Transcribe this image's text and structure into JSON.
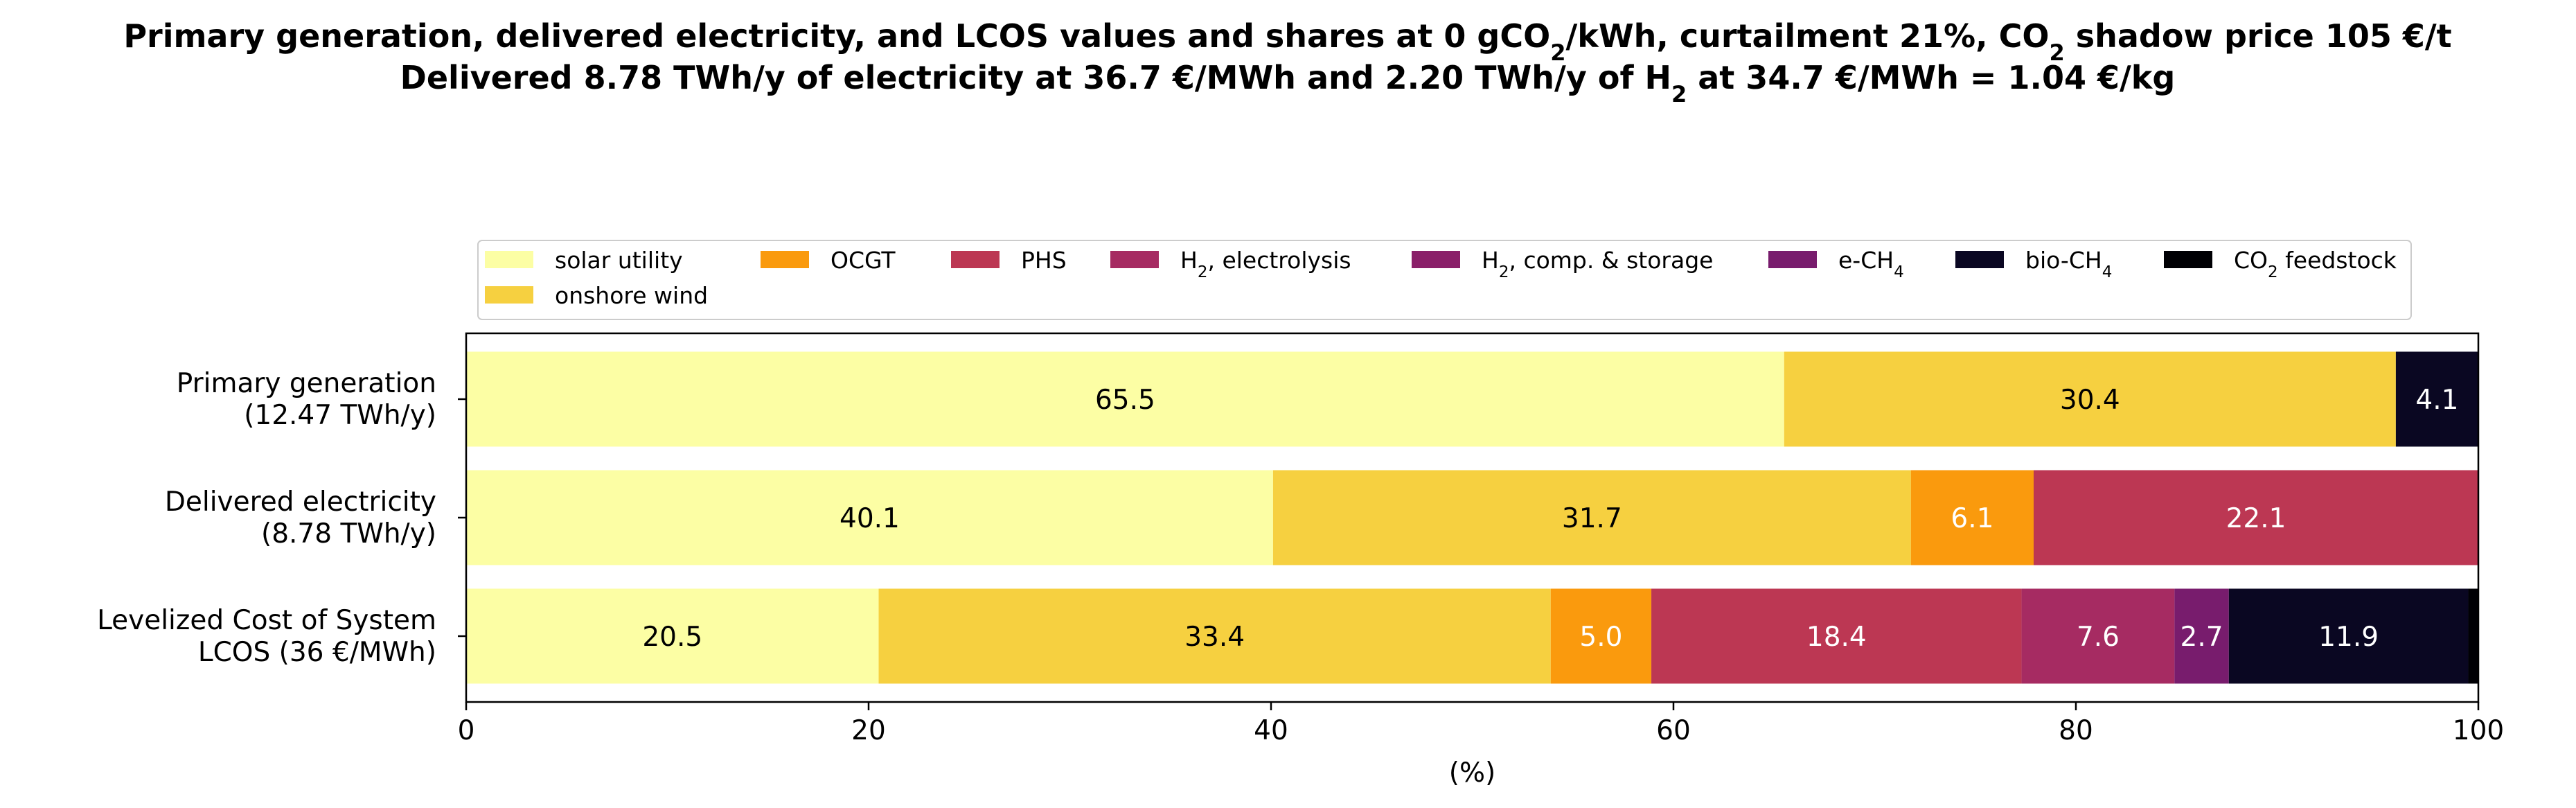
{
  "title": {
    "line1_parts": [
      "Primary generation, delivered electricity, and LCOS values and shares at 0 gCO",
      "2",
      "/kWh, curtailment 21%, CO",
      "2",
      " shadow price 105 €/t"
    ],
    "line2_parts": [
      "Delivered 8.78 TWh/y of electricity at 36.7 €/MWh and 2.20 TWh/y of H",
      "2",
      " at 34.7 €/MWh = 1.04 €/kg"
    ]
  },
  "chart_data": {
    "type": "bar",
    "orientation": "horizontal",
    "stacked": true,
    "categories": [
      [
        "Primary generation",
        "(12.47 TWh/y)"
      ],
      [
        "Delivered electricity ",
        "(8.78 TWh/y)"
      ],
      [
        "Levelized Cost of System",
        "LCOS  (36 €/MWh)"
      ]
    ],
    "xlabel": "(%)",
    "xlim": [
      0,
      100
    ],
    "xticks": [
      0,
      20,
      40,
      60,
      80,
      100
    ],
    "legend_position": "top",
    "series": [
      {
        "name": "solar utility",
        "color": "#fcfea4",
        "values": [
          65.5,
          40.1,
          20.5
        ],
        "label_color": "#000000"
      },
      {
        "name": "onshore wind",
        "color": "#f6d040",
        "values": [
          30.4,
          31.7,
          33.4
        ],
        "label_color": "#000000"
      },
      {
        "name": "OCGT",
        "color": "#fa9a0d",
        "values": [
          0,
          6.1,
          5.0
        ],
        "label_color": "#ffffff"
      },
      {
        "name": "PHS",
        "color": "#bc3753",
        "values": [
          0,
          22.1,
          18.4
        ],
        "label_color": "#ffffff"
      },
      {
        "name": "H₂, electrolysis",
        "color": "#a62b62",
        "values": [
          0,
          0,
          7.6
        ],
        "label_color": "#ffffff"
      },
      {
        "name": "H₂, comp. & storage",
        "color": "#8a1f69",
        "values": [
          0,
          0,
          0
        ],
        "label_color": "#ffffff"
      },
      {
        "name": "e-CH₄",
        "color": "#781c6d",
        "values": [
          0,
          0,
          2.7
        ],
        "label_color": "#ffffff"
      },
      {
        "name": "bio-CH₄",
        "color": "#0a0722",
        "values": [
          4.1,
          0,
          11.9
        ],
        "label_color": "#ffffff"
      },
      {
        "name": "CO₂ feedstock",
        "color": "#000004",
        "values": [
          0,
          0,
          0.5
        ],
        "label_color": "#ffffff"
      }
    ],
    "legend_entries": [
      {
        "parts": [
          "solar utility"
        ],
        "series": 0
      },
      {
        "parts": [
          "OCGT"
        ],
        "series": 2
      },
      {
        "parts": [
          "PHS"
        ],
        "series": 3
      },
      {
        "parts": [
          "H",
          "2",
          ", electrolysis"
        ],
        "series": 4
      },
      {
        "parts": [
          "H",
          "2",
          ", comp. & storage"
        ],
        "series": 5
      },
      {
        "parts": [
          "e-CH",
          "4"
        ],
        "series": 6
      },
      {
        "parts": [
          "bio-CH",
          "4"
        ],
        "series": 7
      },
      {
        "parts": [
          "CO",
          "2",
          " feedstock"
        ],
        "series": 8
      },
      {
        "parts": [
          "onshore wind"
        ],
        "series": 1
      }
    ]
  }
}
